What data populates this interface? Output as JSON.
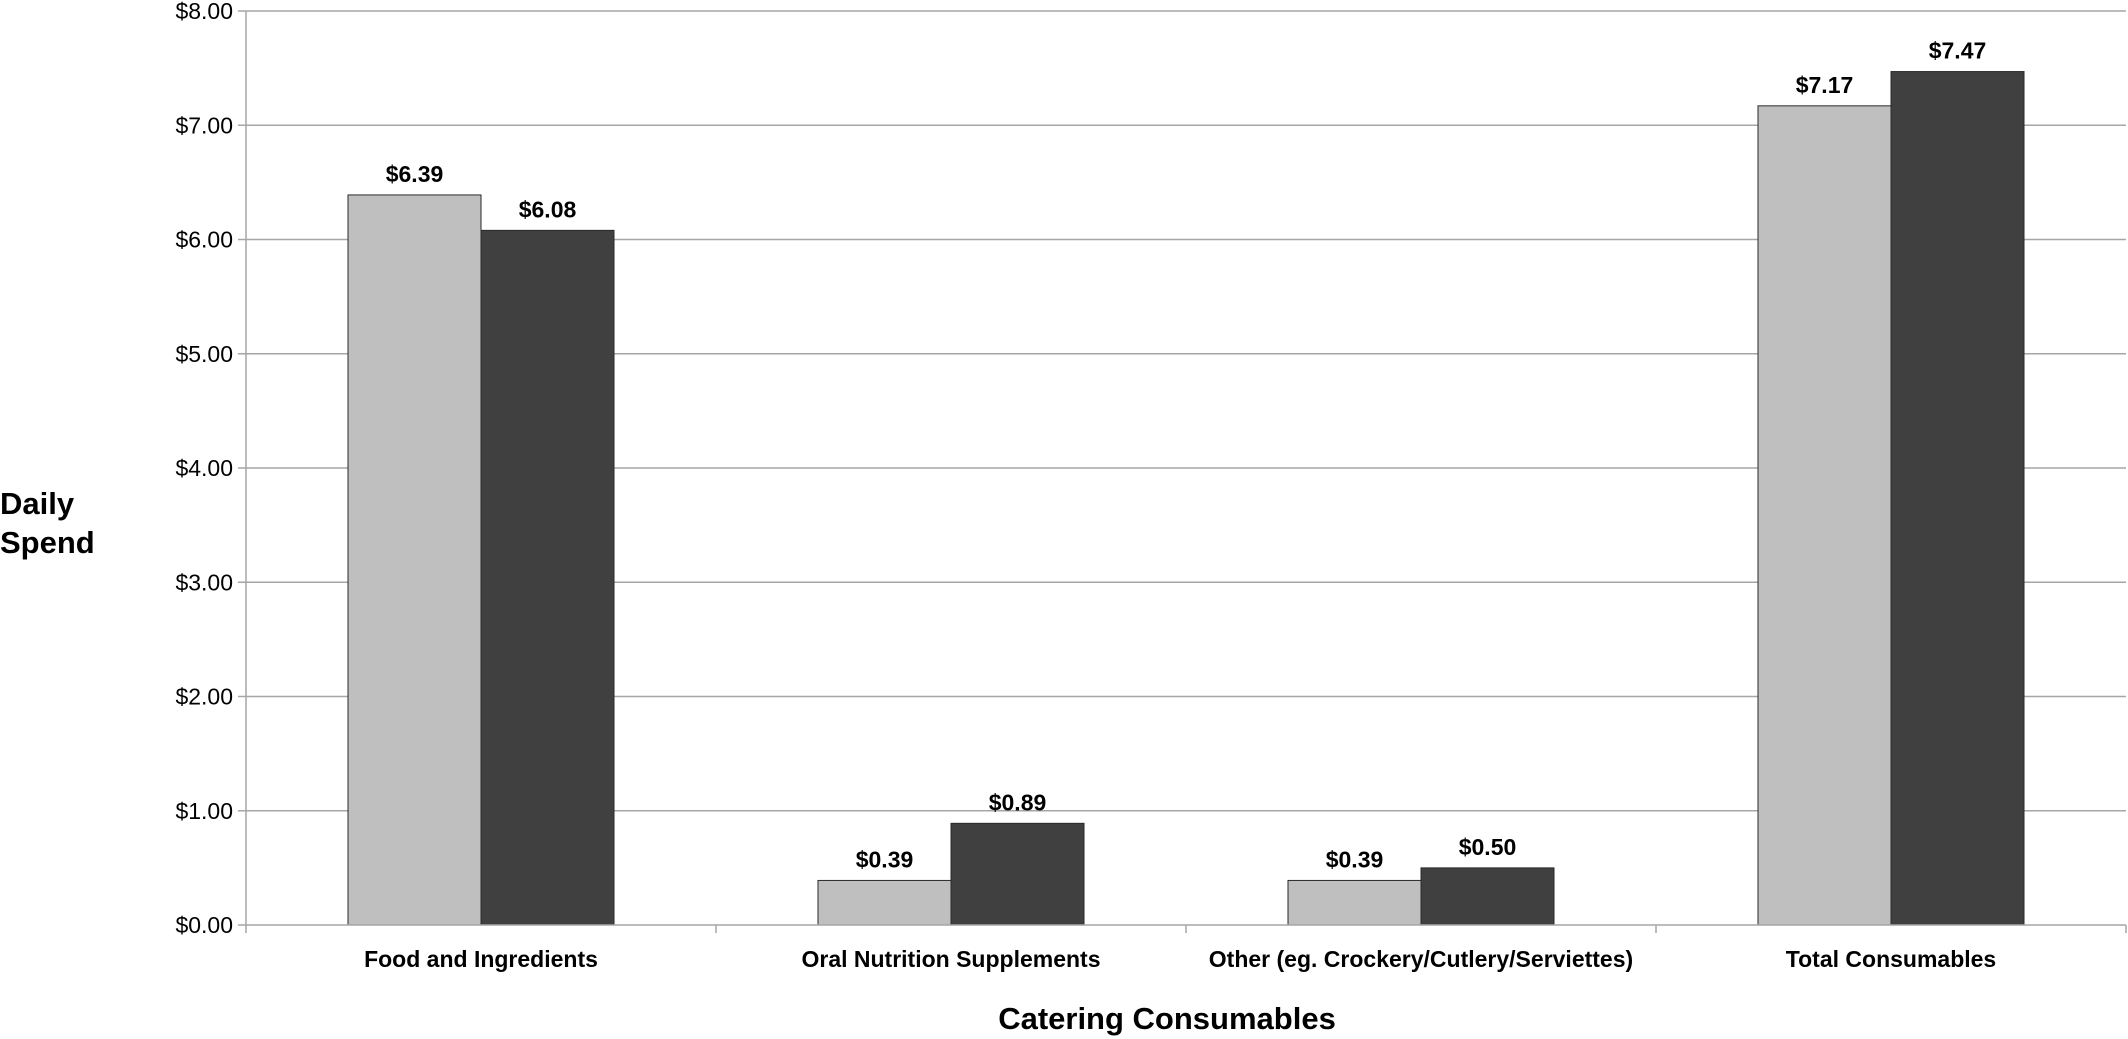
{
  "chart_data": {
    "type": "bar",
    "title": "",
    "xlabel": "Catering Consumables",
    "ylabel_lines": [
      "Daily",
      "Spend"
    ],
    "ylim": [
      0,
      8
    ],
    "yticks": [
      0,
      1,
      2,
      3,
      4,
      5,
      6,
      7,
      8
    ],
    "ytick_labels": [
      "$0.00",
      "$1.00",
      "$2.00",
      "$3.00",
      "$4.00",
      "$5.00",
      "$6.00",
      "$7.00",
      "$8.00"
    ],
    "grid": true,
    "legend": "none",
    "categories": [
      "Food and Ingredients",
      "Oral Nutrition Supplements",
      "Other (eg. Crockery/Cutlery/Serviettes)",
      "Total Consumables"
    ],
    "series": [
      {
        "color": "#bfbfbf",
        "values": [
          6.39,
          0.39,
          0.39,
          7.17
        ],
        "labels": [
          "$6.39",
          "$0.39",
          "$0.39",
          "$7.17"
        ]
      },
      {
        "color": "#404040",
        "values": [
          6.08,
          0.89,
          0.5,
          7.47
        ],
        "labels": [
          "$6.08",
          "$0.89",
          "$0.50",
          "$7.47"
        ]
      }
    ],
    "gridline_color": "#a6a6a6",
    "axis_color": "#a6a6a6"
  }
}
